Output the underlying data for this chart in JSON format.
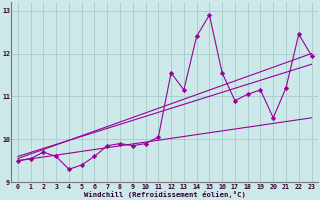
{
  "bg_color": "#cce8e8",
  "grid_color": "#aacece",
  "line_color": "#990099",
  "xlabel": "Windchill (Refroidissement éolien,°C)",
  "xlim": [
    -0.5,
    23.5
  ],
  "ylim": [
    9,
    13.2
  ],
  "yticks": [
    9,
    10,
    11,
    12,
    13
  ],
  "xticks": [
    0,
    1,
    2,
    3,
    4,
    5,
    6,
    7,
    8,
    9,
    10,
    11,
    12,
    13,
    14,
    15,
    16,
    17,
    18,
    19,
    20,
    21,
    22,
    23
  ],
  "main_x": [
    0,
    1,
    2,
    3,
    4,
    5,
    6,
    7,
    8,
    9,
    10,
    11,
    12,
    13,
    14,
    15,
    16,
    17,
    18,
    19,
    20,
    21,
    22,
    23
  ],
  "main_y": [
    9.5,
    9.55,
    9.7,
    9.6,
    9.3,
    9.4,
    9.6,
    9.85,
    9.9,
    9.85,
    9.9,
    10.05,
    11.55,
    11.15,
    12.4,
    12.9,
    11.55,
    10.9,
    11.05,
    11.15,
    10.5,
    11.2,
    12.45,
    11.95
  ],
  "trend_lines": [
    {
      "x0": 0,
      "y0": 9.5,
      "x1": 23,
      "y1": 10.5
    },
    {
      "x0": 0,
      "y0": 9.55,
      "x1": 23,
      "y1": 12.0
    },
    {
      "x0": 0,
      "y0": 9.6,
      "x1": 23,
      "y1": 11.75
    }
  ]
}
